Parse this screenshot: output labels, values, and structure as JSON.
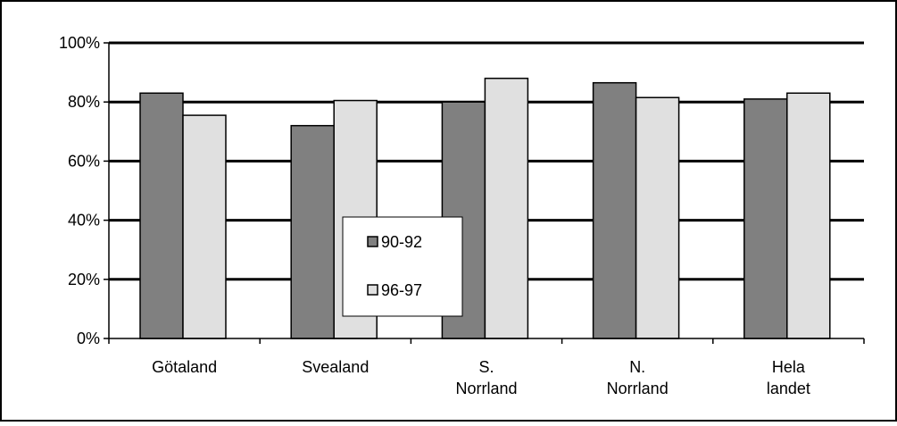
{
  "chart_data": {
    "type": "bar",
    "categories": [
      [
        "Götaland"
      ],
      [
        "Svealand"
      ],
      [
        "S.",
        "Norrland"
      ],
      [
        "N.",
        "Norrland"
      ],
      [
        "Hela",
        "landet"
      ]
    ],
    "series": [
      {
        "name": "90-92",
        "values": [
          83,
          72,
          80,
          86.5,
          81
        ],
        "color": "#808080"
      },
      {
        "name": "96-97",
        "values": [
          75.5,
          80.5,
          88,
          81.5,
          83
        ],
        "color": "#e0e0e0"
      }
    ],
    "ylim": [
      0,
      100
    ],
    "yticks": [
      0,
      20,
      40,
      60,
      80,
      100
    ],
    "ytick_labels": [
      "0%",
      "20%",
      "40%",
      "60%",
      "80%",
      "100%"
    ],
    "grid": true,
    "legend_position": "center-left",
    "title": "",
    "xlabel": "",
    "ylabel": ""
  }
}
